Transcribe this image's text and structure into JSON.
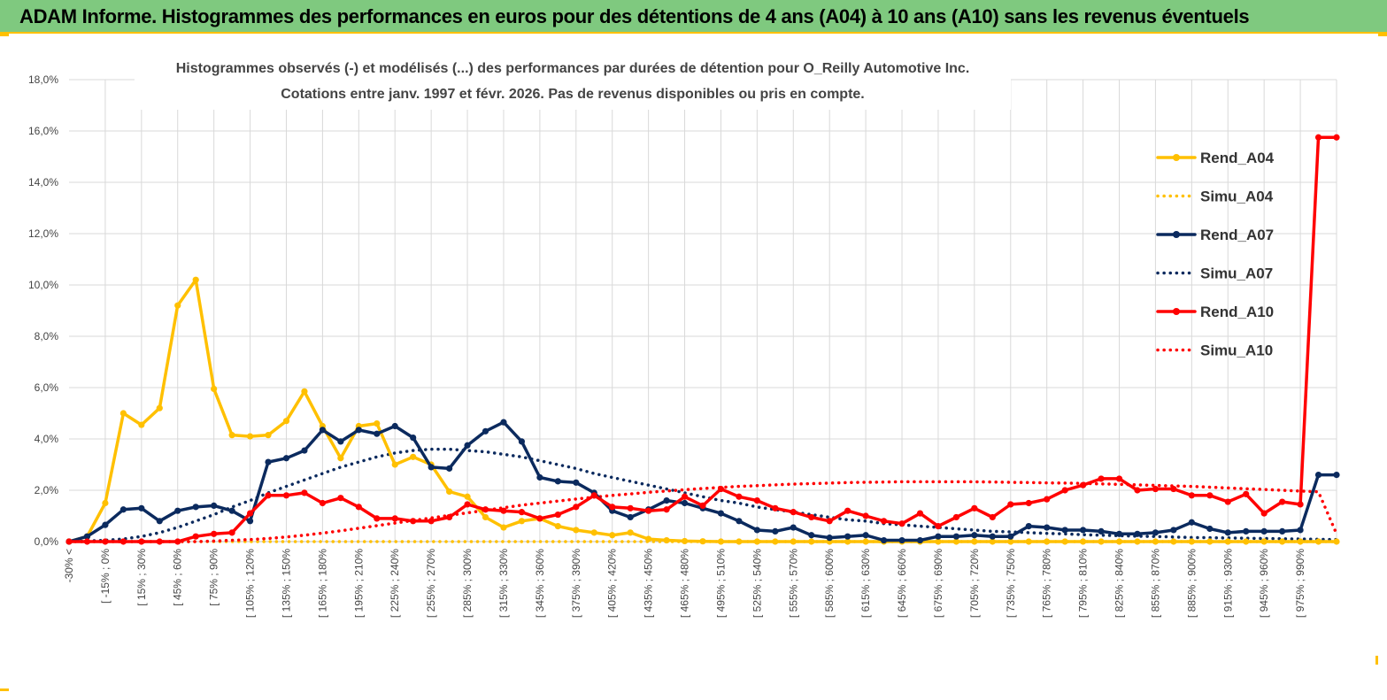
{
  "header": {
    "title": "ADAM Informe. Histogrammes des performances en euros pour des détentions de 4 ans (A04) à 10 ans (A10) sans les revenus éventuels"
  },
  "chart_data": {
    "type": "line",
    "title_line1": "Histogrammes observés (-)  et modélisés (...) des performances par durées de détention pour O_Reilly Automotive Inc.",
    "title_line2": "Cotations entre janv. 1997 et févr.  2026. Pas de revenus disponibles ou pris en compte.",
    "ylim": [
      0,
      18
    ],
    "yticks": [
      "0,0%",
      "2,0%",
      "4,0%",
      "6,0%",
      "8,0%",
      "10,0%",
      "12,0%",
      "14,0%",
      "16,0%",
      "18,0%"
    ],
    "x_labels": [
      "-30% <",
      "[ -15% ; 0%",
      "[ 15% ; 30%",
      "[ 45% ; 60%",
      "[ 75% ; 90%",
      "[ 105% ; 120%",
      "[ 135% ; 150%",
      "[ 165% ; 180%",
      "[ 195% ; 210%",
      "[ 225% ; 240%",
      "[ 255% ; 270%",
      "[ 285% ; 300%",
      "[ 315% ; 330%",
      "[ 345% ; 360%",
      "[ 375% ; 390%",
      "[ 405% ; 420%",
      "[ 435% ; 450%",
      "[ 465% ; 480%",
      "[ 495% ; 510%",
      "[ 525% ; 540%",
      "[ 555% ; 570%",
      "[ 585% ; 600%",
      "[ 615% ; 630%",
      "[ 645% ; 660%",
      "[ 675% ; 690%",
      "[ 705% ; 720%",
      "[ 735% ; 750%",
      "[ 765% ; 780%",
      "[ 795% ; 810%",
      "[ 825% ; 840%",
      "[ 855% ; 870%",
      "[ 885% ; 900%",
      "[ 915% ; 930%",
      "[ 945% ; 960%",
      "[ 975% ; 990%"
    ],
    "legend_position": "right",
    "series": [
      {
        "name": "Rend_A04",
        "style": "solid",
        "color": "#ffc000",
        "markers": true,
        "values": [
          0,
          0.2,
          1.5,
          5.0,
          4.55,
          5.2,
          9.2,
          10.2,
          5.95,
          4.15,
          4.1,
          4.15,
          4.7,
          5.85,
          4.5,
          3.25,
          4.5,
          4.6,
          3.0,
          3.3,
          3.0,
          1.95,
          1.75,
          0.95,
          0.55,
          0.8,
          0.9,
          0.6,
          0.45,
          0.35,
          0.25,
          0.35,
          0.1,
          0.05,
          0.02,
          0.01,
          0,
          0,
          0,
          0,
          0,
          0,
          0,
          0,
          0,
          0,
          0,
          0,
          0,
          0,
          0,
          0,
          0,
          0,
          0,
          0,
          0,
          0,
          0,
          0,
          0,
          0,
          0,
          0,
          0,
          0,
          0,
          0,
          0,
          0,
          0
        ]
      },
      {
        "name": "Simu_A04",
        "style": "dotted",
        "color": "#ffc000",
        "markers": false,
        "values": [
          0,
          0,
          0,
          0,
          0,
          0,
          0,
          0,
          0,
          0,
          0,
          0,
          0,
          0,
          0,
          0,
          0,
          0,
          0,
          0,
          0,
          0,
          0,
          0,
          0,
          0,
          0,
          0,
          0,
          0,
          0,
          0,
          0,
          0,
          0,
          0,
          0,
          0,
          0,
          0,
          0,
          0,
          0,
          0,
          0,
          0,
          0,
          0,
          0,
          0,
          0,
          0,
          0,
          0,
          0,
          0,
          0,
          0,
          0,
          0,
          0,
          0,
          0,
          0,
          0,
          0,
          0,
          0,
          0,
          0,
          0
        ]
      },
      {
        "name": "Rend_A07",
        "style": "solid",
        "color": "#0b2a5e",
        "markers": true,
        "values": [
          0,
          0.2,
          0.65,
          1.25,
          1.3,
          0.8,
          1.2,
          1.35,
          1.4,
          1.2,
          0.8,
          3.1,
          3.25,
          3.55,
          4.35,
          3.9,
          4.35,
          4.2,
          4.5,
          4.05,
          2.9,
          2.85,
          3.75,
          4.3,
          4.65,
          3.9,
          2.5,
          2.35,
          2.3,
          1.9,
          1.2,
          0.95,
          1.25,
          1.6,
          1.5,
          1.3,
          1.1,
          0.8,
          0.45,
          0.4,
          0.55,
          0.25,
          0.15,
          0.2,
          0.25,
          0.05,
          0.05,
          0.05,
          0.2,
          0.2,
          0.25,
          0.2,
          0.2,
          0.6,
          0.55,
          0.45,
          0.45,
          0.4,
          0.3,
          0.3,
          0.35,
          0.45,
          0.75,
          0.5,
          0.35,
          0.4,
          0.4,
          0.4,
          0.45,
          2.6,
          2.6
        ]
      },
      {
        "name": "Simu_A07",
        "style": "dotted",
        "color": "#0b2a5e",
        "markers": false,
        "values": [
          0,
          0.02,
          0.05,
          0.1,
          0.2,
          0.35,
          0.55,
          0.8,
          1.05,
          1.35,
          1.6,
          1.9,
          2.15,
          2.4,
          2.65,
          2.9,
          3.1,
          3.3,
          3.45,
          3.55,
          3.6,
          3.6,
          3.55,
          3.5,
          3.4,
          3.3,
          3.15,
          3.0,
          2.85,
          2.65,
          2.5,
          2.35,
          2.2,
          2.05,
          1.9,
          1.75,
          1.6,
          1.5,
          1.35,
          1.25,
          1.15,
          1.05,
          0.95,
          0.85,
          0.8,
          0.7,
          0.65,
          0.6,
          0.55,
          0.5,
          0.45,
          0.4,
          0.38,
          0.35,
          0.32,
          0.3,
          0.27,
          0.25,
          0.23,
          0.21,
          0.2,
          0.18,
          0.16,
          0.15,
          0.14,
          0.13,
          0.12,
          0.11,
          0.1,
          0.09,
          0.08
        ]
      },
      {
        "name": "Rend_A10",
        "style": "solid",
        "color": "#ff0000",
        "markers": true,
        "values": [
          0,
          0,
          0,
          0,
          0,
          0,
          0,
          0.2,
          0.3,
          0.35,
          1.1,
          1.8,
          1.8,
          1.9,
          1.5,
          1.7,
          1.35,
          0.9,
          0.9,
          0.8,
          0.8,
          0.95,
          1.45,
          1.25,
          1.2,
          1.15,
          0.9,
          1.05,
          1.35,
          1.8,
          1.35,
          1.3,
          1.2,
          1.25,
          1.75,
          1.4,
          2.05,
          1.75,
          1.6,
          1.3,
          1.15,
          0.95,
          0.8,
          1.2,
          1.0,
          0.8,
          0.7,
          1.1,
          0.6,
          0.95,
          1.3,
          0.95,
          1.45,
          1.5,
          1.65,
          2.0,
          2.2,
          2.45,
          2.45,
          2.0,
          2.05,
          2.05,
          1.8,
          1.8,
          1.55,
          1.85,
          1.1,
          1.55,
          1.45,
          15.75,
          15.75
        ]
      },
      {
        "name": "Simu_A10",
        "style": "dotted",
        "color": "#ff0000",
        "markers": false,
        "values": [
          0,
          0,
          0,
          0,
          0,
          0,
          0,
          0,
          0.02,
          0.05,
          0.08,
          0.12,
          0.18,
          0.25,
          0.33,
          0.42,
          0.52,
          0.62,
          0.72,
          0.82,
          0.92,
          1.02,
          1.12,
          1.22,
          1.32,
          1.42,
          1.5,
          1.58,
          1.66,
          1.73,
          1.8,
          1.86,
          1.92,
          1.97,
          2.02,
          2.07,
          2.11,
          2.15,
          2.18,
          2.21,
          2.24,
          2.26,
          2.28,
          2.3,
          2.31,
          2.32,
          2.33,
          2.33,
          2.33,
          2.33,
          2.33,
          2.32,
          2.31,
          2.3,
          2.29,
          2.28,
          2.27,
          2.25,
          2.23,
          2.21,
          2.19,
          2.17,
          2.15,
          2.12,
          2.09,
          2.06,
          2.03,
          2.0,
          1.97,
          1.94,
          0.3
        ]
      }
    ]
  }
}
